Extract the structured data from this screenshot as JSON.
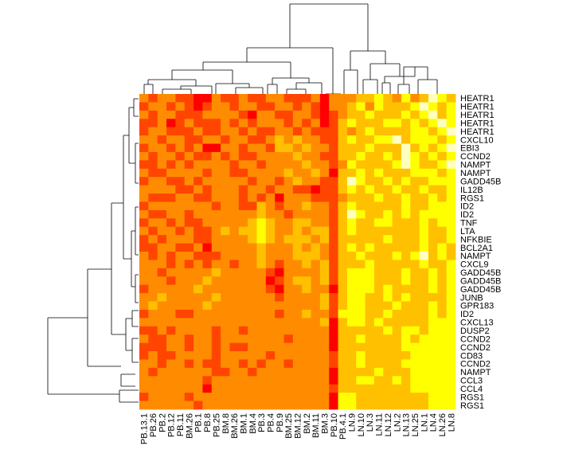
{
  "chart_data": {
    "type": "heatmap",
    "title": "",
    "xlabel": "",
    "ylabel": "",
    "colormap": [
      "#ff0000",
      "#ff4500",
      "#ff8c00",
      "#ffc000",
      "#ffff00",
      "#ffffbf"
    ],
    "x": [
      "PB.13.1",
      "PB.26",
      "PB.2",
      "PB.12",
      "PB.11",
      "BM.26",
      "PB.1",
      "PB.8",
      "PB.25",
      "BM.8",
      "BM.26",
      "BM.1",
      "BM.4",
      "PB.3",
      "PB.4",
      "PB.9",
      "BM.25",
      "BM.12",
      "BM.2",
      "BM.11",
      "BM.3",
      "PB.10",
      "PB.4.1",
      "LN.9",
      "LN.10",
      "LN.3",
      "LN.11",
      "LN.12",
      "LN.2",
      "LN.13",
      "LN.25",
      "LN.1",
      "LN.4",
      "LN.26",
      "LN.8"
    ],
    "y": [
      "HEATR1",
      "HEATR1",
      "HEATR1",
      "HEATR1",
      "HEATR1",
      "CXCL10",
      "EBI3",
      "CCND2",
      "NAMPT",
      "NAMPT",
      "GADD45B",
      "IL12B",
      "RGS1",
      "ID2",
      "ID2",
      "TNF",
      "LTA",
      "NFKBIE",
      "BCL2A1",
      "NAMPT",
      "CXCL9",
      "GADD45B",
      "GADD45B",
      "GADD45B",
      "JUNB",
      "GPR183",
      "ID2",
      "CXCL13",
      "DUSP2",
      "CCND2",
      "CCND2",
      "CD83",
      "CCND2",
      "NAMPT",
      "CCL3",
      "CCL4",
      "RGS1",
      "RGS1"
    ],
    "values": [
      [
        2,
        1,
        2,
        2,
        1,
        1,
        0,
        0,
        2,
        1,
        1,
        2,
        1,
        1,
        2,
        2,
        1,
        1,
        1,
        2,
        0,
        2,
        2,
        2,
        3,
        3,
        4,
        3,
        2,
        4,
        2,
        3,
        5,
        4,
        3
      ],
      [
        1,
        2,
        2,
        1,
        2,
        1,
        0,
        1,
        2,
        2,
        1,
        2,
        2,
        1,
        1,
        2,
        2,
        1,
        2,
        1,
        0,
        2,
        2,
        3,
        4,
        2,
        4,
        3,
        3,
        3,
        4,
        5,
        4,
        3,
        4
      ],
      [
        2,
        1,
        2,
        2,
        1,
        1,
        1,
        2,
        2,
        2,
        2,
        1,
        0,
        2,
        2,
        1,
        1,
        2,
        2,
        1,
        0,
        1,
        2,
        3,
        3,
        4,
        3,
        3,
        3,
        4,
        3,
        4,
        5,
        3,
        4
      ],
      [
        1,
        1,
        2,
        0,
        1,
        2,
        1,
        1,
        1,
        2,
        1,
        2,
        1,
        2,
        2,
        2,
        1,
        2,
        1,
        2,
        0,
        1,
        3,
        4,
        3,
        3,
        3,
        4,
        4,
        3,
        4,
        3,
        4,
        5,
        4
      ],
      [
        1,
        2,
        2,
        1,
        1,
        1,
        2,
        1,
        1,
        2,
        2,
        1,
        2,
        1,
        1,
        2,
        2,
        1,
        2,
        1,
        1,
        1,
        3,
        2,
        3,
        4,
        3,
        3,
        3,
        3,
        4,
        4,
        3,
        4,
        5
      ],
      [
        2,
        2,
        1,
        2,
        2,
        1,
        1,
        2,
        2,
        1,
        2,
        2,
        1,
        1,
        2,
        3,
        2,
        3,
        2,
        2,
        1,
        1,
        3,
        4,
        3,
        3,
        4,
        4,
        5,
        3,
        4,
        4,
        4,
        3,
        4
      ],
      [
        1,
        2,
        2,
        1,
        2,
        1,
        2,
        0,
        0,
        2,
        2,
        1,
        2,
        2,
        1,
        3,
        3,
        2,
        3,
        2,
        2,
        1,
        3,
        3,
        3,
        4,
        3,
        3,
        3,
        5,
        3,
        4,
        3,
        4,
        5
      ],
      [
        2,
        1,
        2,
        2,
        1,
        2,
        1,
        1,
        2,
        1,
        2,
        1,
        1,
        2,
        2,
        2,
        2,
        3,
        2,
        2,
        1,
        1,
        3,
        3,
        4,
        3,
        3,
        4,
        3,
        5,
        4,
        3,
        4,
        3,
        4
      ],
      [
        1,
        1,
        2,
        1,
        2,
        1,
        2,
        2,
        2,
        2,
        1,
        2,
        2,
        1,
        2,
        2,
        2,
        2,
        3,
        2,
        2,
        1,
        2,
        4,
        3,
        3,
        3,
        3,
        4,
        5,
        4,
        3,
        3,
        4,
        5
      ],
      [
        2,
        1,
        1,
        2,
        2,
        2,
        2,
        1,
        2,
        2,
        1,
        1,
        2,
        2,
        2,
        2,
        3,
        2,
        2,
        3,
        2,
        0,
        3,
        3,
        4,
        3,
        4,
        3,
        3,
        3,
        4,
        4,
        4,
        3,
        4
      ],
      [
        1,
        2,
        2,
        1,
        1,
        2,
        1,
        2,
        2,
        2,
        2,
        2,
        1,
        2,
        2,
        1,
        2,
        3,
        2,
        2,
        1,
        1,
        3,
        5,
        4,
        3,
        3,
        4,
        3,
        4,
        3,
        3,
        4,
        4,
        4
      ],
      [
        2,
        2,
        2,
        2,
        1,
        1,
        2,
        1,
        2,
        2,
        2,
        1,
        2,
        2,
        1,
        2,
        2,
        1,
        1,
        0,
        1,
        1,
        3,
        4,
        3,
        4,
        3,
        3,
        4,
        3,
        3,
        4,
        3,
        3,
        4
      ],
      [
        2,
        1,
        1,
        1,
        2,
        2,
        1,
        1,
        2,
        2,
        2,
        1,
        2,
        1,
        2,
        0,
        2,
        2,
        2,
        1,
        1,
        1,
        2,
        3,
        3,
        3,
        4,
        3,
        3,
        4,
        3,
        3,
        4,
        3,
        4
      ],
      [
        1,
        2,
        2,
        2,
        2,
        2,
        2,
        2,
        1,
        2,
        2,
        1,
        1,
        3,
        2,
        1,
        2,
        2,
        3,
        2,
        2,
        1,
        3,
        4,
        3,
        3,
        3,
        3,
        3,
        4,
        3,
        3,
        4,
        4,
        4
      ],
      [
        2,
        1,
        1,
        2,
        2,
        1,
        2,
        2,
        2,
        2,
        2,
        2,
        2,
        3,
        2,
        2,
        1,
        2,
        2,
        2,
        2,
        1,
        3,
        5,
        4,
        3,
        3,
        4,
        3,
        4,
        3,
        4,
        4,
        4,
        4
      ],
      [
        1,
        2,
        2,
        1,
        2,
        1,
        1,
        2,
        2,
        2,
        2,
        2,
        3,
        4,
        3,
        2,
        2,
        3,
        3,
        2,
        2,
        1,
        3,
        4,
        3,
        3,
        4,
        4,
        3,
        3,
        3,
        4,
        3,
        4,
        4
      ],
      [
        2,
        1,
        2,
        2,
        1,
        2,
        1,
        1,
        2,
        3,
        2,
        3,
        3,
        4,
        3,
        2,
        2,
        3,
        2,
        3,
        3,
        1,
        3,
        4,
        3,
        3,
        3,
        3,
        3,
        3,
        3,
        4,
        3,
        3,
        4
      ],
      [
        1,
        2,
        1,
        2,
        2,
        2,
        1,
        1,
        2,
        2,
        2,
        2,
        3,
        4,
        3,
        2,
        3,
        3,
        3,
        2,
        3,
        1,
        3,
        3,
        3,
        3,
        3,
        4,
        3,
        3,
        3,
        4,
        3,
        3,
        4
      ],
      [
        1,
        1,
        2,
        2,
        1,
        1,
        2,
        0,
        2,
        2,
        2,
        2,
        2,
        3,
        2,
        2,
        2,
        3,
        2,
        3,
        2,
        1,
        3,
        4,
        3,
        4,
        3,
        3,
        3,
        3,
        3,
        4,
        3,
        4,
        3
      ],
      [
        2,
        1,
        2,
        1,
        2,
        2,
        1,
        1,
        1,
        2,
        2,
        2,
        2,
        3,
        2,
        2,
        2,
        3,
        3,
        3,
        2,
        1,
        3,
        3,
        4,
        3,
        3,
        3,
        4,
        3,
        4,
        5,
        3,
        4,
        3
      ],
      [
        2,
        2,
        2,
        1,
        2,
        1,
        2,
        1,
        2,
        2,
        1,
        2,
        2,
        3,
        2,
        1,
        2,
        2,
        3,
        2,
        3,
        1,
        3,
        3,
        3,
        4,
        3,
        3,
        3,
        3,
        3,
        4,
        3,
        3,
        4
      ],
      [
        2,
        2,
        1,
        2,
        2,
        2,
        2,
        2,
        3,
        2,
        2,
        2,
        2,
        2,
        1,
        0,
        2,
        2,
        2,
        2,
        3,
        1,
        3,
        4,
        4,
        4,
        3,
        3,
        3,
        4,
        3,
        3,
        4,
        3,
        4
      ],
      [
        2,
        2,
        2,
        1,
        2,
        2,
        2,
        3,
        2,
        2,
        2,
        2,
        2,
        2,
        0,
        1,
        2,
        3,
        3,
        2,
        3,
        1,
        3,
        4,
        4,
        4,
        3,
        3,
        3,
        4,
        3,
        3,
        4,
        3,
        4
      ],
      [
        1,
        2,
        2,
        2,
        2,
        2,
        3,
        2,
        2,
        2,
        2,
        2,
        2,
        2,
        1,
        0,
        2,
        2,
        3,
        2,
        2,
        0,
        3,
        4,
        4,
        4,
        3,
        4,
        3,
        3,
        3,
        3,
        4,
        3,
        4
      ],
      [
        2,
        2,
        3,
        2,
        2,
        2,
        2,
        2,
        3,
        2,
        2,
        2,
        2,
        2,
        2,
        1,
        2,
        2,
        2,
        2,
        3,
        1,
        3,
        4,
        4,
        3,
        3,
        4,
        3,
        4,
        3,
        3,
        3,
        3,
        4
      ],
      [
        2,
        3,
        2,
        2,
        2,
        2,
        2,
        3,
        2,
        2,
        2,
        2,
        2,
        2,
        2,
        2,
        2,
        2,
        2,
        2,
        3,
        1,
        3,
        4,
        4,
        3,
        3,
        3,
        4,
        3,
        3,
        3,
        4,
        3,
        4
      ],
      [
        1,
        2,
        2,
        2,
        1,
        1,
        2,
        2,
        2,
        2,
        2,
        2,
        2,
        2,
        2,
        1,
        2,
        2,
        3,
        2,
        2,
        1,
        4,
        4,
        4,
        3,
        3,
        4,
        3,
        3,
        3,
        3,
        4,
        3,
        4
      ],
      [
        2,
        2,
        2,
        2,
        2,
        2,
        2,
        2,
        2,
        2,
        2,
        2,
        2,
        2,
        2,
        2,
        2,
        2,
        2,
        2,
        3,
        0,
        3,
        4,
        4,
        3,
        4,
        3,
        3,
        3,
        3,
        3,
        4,
        4,
        4
      ],
      [
        1,
        1,
        2,
        1,
        2,
        2,
        2,
        2,
        1,
        2,
        2,
        1,
        2,
        2,
        2,
        2,
        2,
        2,
        2,
        2,
        2,
        0,
        3,
        3,
        3,
        3,
        3,
        4,
        3,
        4,
        4,
        3,
        4,
        4,
        4
      ],
      [
        2,
        1,
        1,
        2,
        2,
        1,
        2,
        2,
        1,
        2,
        2,
        2,
        2,
        2,
        2,
        2,
        1,
        2,
        2,
        2,
        2,
        0,
        3,
        3,
        4,
        3,
        3,
        3,
        3,
        4,
        3,
        4,
        4,
        4,
        4
      ],
      [
        1,
        1,
        1,
        2,
        2,
        1,
        2,
        2,
        1,
        2,
        1,
        1,
        2,
        2,
        2,
        2,
        2,
        2,
        2,
        2,
        2,
        0,
        3,
        3,
        3,
        3,
        3,
        3,
        3,
        4,
        4,
        4,
        4,
        4,
        4
      ],
      [
        1,
        2,
        1,
        1,
        2,
        2,
        2,
        2,
        1,
        2,
        2,
        2,
        2,
        2,
        1,
        2,
        2,
        2,
        2,
        2,
        2,
        1,
        3,
        3,
        4,
        3,
        3,
        3,
        3,
        3,
        4,
        4,
        4,
        4,
        4
      ],
      [
        2,
        2,
        1,
        2,
        2,
        1,
        2,
        1,
        1,
        2,
        2,
        1,
        2,
        1,
        2,
        2,
        1,
        2,
        2,
        2,
        2,
        1,
        3,
        3,
        4,
        3,
        3,
        3,
        3,
        4,
        4,
        4,
        4,
        4,
        4
      ],
      [
        2,
        1,
        2,
        2,
        2,
        2,
        2,
        2,
        1,
        1,
        2,
        2,
        1,
        2,
        2,
        2,
        2,
        2,
        2,
        2,
        2,
        0,
        3,
        3,
        3,
        3,
        4,
        3,
        3,
        3,
        4,
        4,
        4,
        4,
        4
      ],
      [
        2,
        2,
        2,
        2,
        2,
        2,
        2,
        1,
        2,
        2,
        2,
        2,
        2,
        2,
        2,
        2,
        2,
        2,
        2,
        2,
        2,
        0,
        3,
        3,
        4,
        4,
        3,
        3,
        4,
        3,
        4,
        4,
        4,
        4,
        4
      ],
      [
        2,
        2,
        2,
        2,
        2,
        2,
        2,
        0,
        2,
        2,
        2,
        2,
        2,
        2,
        2,
        2,
        2,
        2,
        2,
        2,
        2,
        1,
        3,
        3,
        3,
        3,
        3,
        3,
        3,
        3,
        4,
        4,
        4,
        4,
        4
      ],
      [
        1,
        2,
        2,
        2,
        2,
        1,
        2,
        2,
        2,
        2,
        2,
        2,
        2,
        2,
        2,
        2,
        2,
        2,
        2,
        2,
        2,
        0,
        4,
        4,
        3,
        3,
        3,
        3,
        3,
        3,
        3,
        3,
        4,
        4,
        4
      ],
      [
        2,
        2,
        2,
        2,
        2,
        2,
        1,
        2,
        2,
        2,
        2,
        2,
        2,
        2,
        2,
        2,
        2,
        2,
        2,
        2,
        2,
        0,
        4,
        4,
        3,
        3,
        3,
        3,
        3,
        3,
        3,
        3,
        4,
        4,
        4
      ]
    ],
    "grid": false,
    "legend": "none"
  }
}
